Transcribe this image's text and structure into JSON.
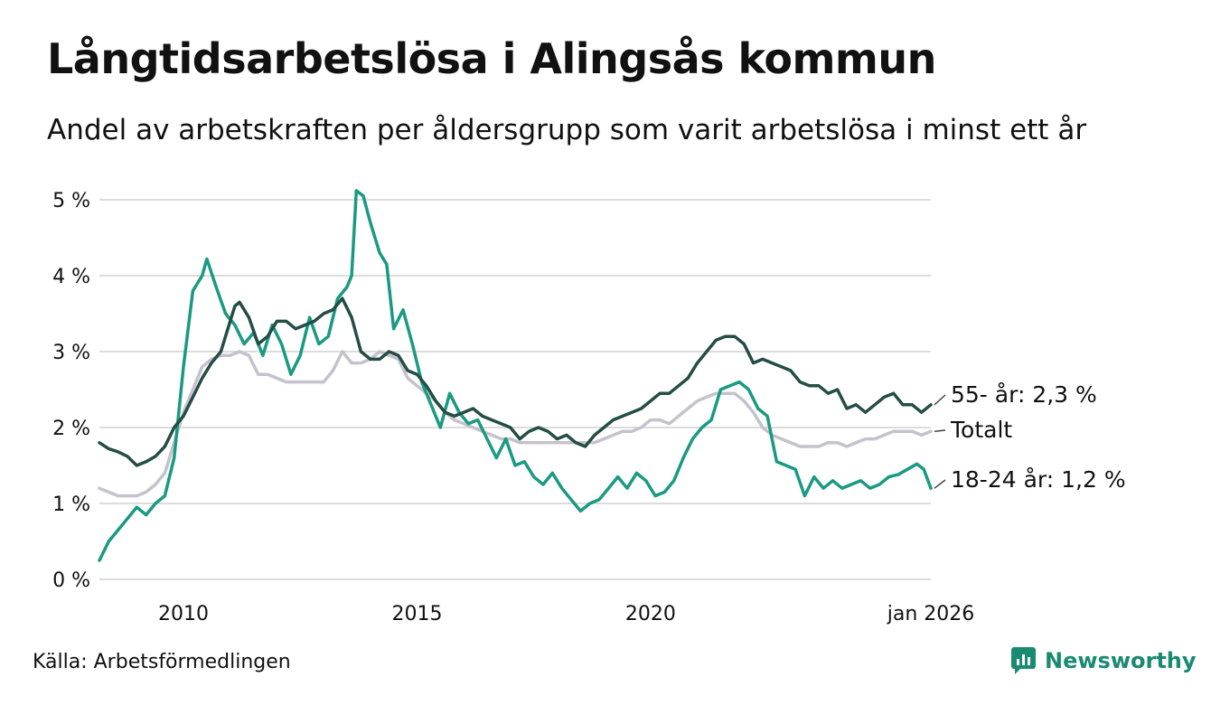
{
  "title": "Långtidsarbetslösa i Alingsås kommun",
  "subtitle": "Andel av arbetskraften per åldersgrupp som varit arbetslösa i minst ett år",
  "source": "Källa: Arbetsförmedlingen",
  "brand": "Newsworthy",
  "colors": {
    "young": "#1a9a82",
    "old": "#244d45",
    "total": "#c4c2cc",
    "grid": "#dcdcdc",
    "brand": "#1a8a72"
  },
  "chart_data": {
    "type": "line",
    "title": "Långtidsarbetslösa i Alingsås kommun",
    "xlabel": "",
    "ylabel": "",
    "xlim": [
      2008.2,
      2026.0
    ],
    "ylim": [
      0,
      5
    ],
    "y_ticks": [
      {
        "value": 0,
        "label": "0 %"
      },
      {
        "value": 1,
        "label": "1 %"
      },
      {
        "value": 2,
        "label": "2 %"
      },
      {
        "value": 3,
        "label": "3 %"
      },
      {
        "value": 4,
        "label": "4 %"
      },
      {
        "value": 5,
        "label": "5 %"
      }
    ],
    "x_ticks": [
      {
        "value": 2010.0,
        "label": "2010"
      },
      {
        "value": 2015.0,
        "label": "2015"
      },
      {
        "value": 2020.0,
        "label": "2020"
      },
      {
        "value": 2026.0,
        "label": "jan 2026"
      }
    ],
    "series": [
      {
        "name": "18-24 år",
        "end_label": "18-24 år: 1,2 %",
        "color_key": "young",
        "points": [
          [
            2008.2,
            0.25
          ],
          [
            2008.4,
            0.5
          ],
          [
            2008.6,
            0.65
          ],
          [
            2008.8,
            0.8
          ],
          [
            2009.0,
            0.95
          ],
          [
            2009.2,
            0.85
          ],
          [
            2009.4,
            1.0
          ],
          [
            2009.6,
            1.1
          ],
          [
            2009.8,
            1.6
          ],
          [
            2010.0,
            2.8
          ],
          [
            2010.2,
            3.8
          ],
          [
            2010.4,
            4.0
          ],
          [
            2010.5,
            4.22
          ],
          [
            2010.7,
            3.85
          ],
          [
            2010.9,
            3.5
          ],
          [
            2011.1,
            3.35
          ],
          [
            2011.3,
            3.1
          ],
          [
            2011.5,
            3.25
          ],
          [
            2011.7,
            2.95
          ],
          [
            2011.9,
            3.35
          ],
          [
            2012.1,
            3.1
          ],
          [
            2012.3,
            2.7
          ],
          [
            2012.5,
            2.95
          ],
          [
            2012.7,
            3.45
          ],
          [
            2012.9,
            3.1
          ],
          [
            2013.1,
            3.2
          ],
          [
            2013.3,
            3.7
          ],
          [
            2013.5,
            3.85
          ],
          [
            2013.6,
            4.0
          ],
          [
            2013.7,
            5.12
          ],
          [
            2013.85,
            5.05
          ],
          [
            2014.0,
            4.7
          ],
          [
            2014.2,
            4.3
          ],
          [
            2014.35,
            4.15
          ],
          [
            2014.5,
            3.3
          ],
          [
            2014.7,
            3.55
          ],
          [
            2014.9,
            3.1
          ],
          [
            2015.1,
            2.6
          ],
          [
            2015.3,
            2.3
          ],
          [
            2015.5,
            2.0
          ],
          [
            2015.7,
            2.45
          ],
          [
            2015.9,
            2.2
          ],
          [
            2016.1,
            2.05
          ],
          [
            2016.3,
            2.1
          ],
          [
            2016.5,
            1.85
          ],
          [
            2016.7,
            1.6
          ],
          [
            2016.9,
            1.85
          ],
          [
            2017.1,
            1.5
          ],
          [
            2017.3,
            1.55
          ],
          [
            2017.5,
            1.35
          ],
          [
            2017.7,
            1.25
          ],
          [
            2017.9,
            1.4
          ],
          [
            2018.1,
            1.2
          ],
          [
            2018.3,
            1.05
          ],
          [
            2018.5,
            0.9
          ],
          [
            2018.7,
            1.0
          ],
          [
            2018.9,
            1.05
          ],
          [
            2019.1,
            1.2
          ],
          [
            2019.3,
            1.35
          ],
          [
            2019.5,
            1.2
          ],
          [
            2019.7,
            1.4
          ],
          [
            2019.9,
            1.3
          ],
          [
            2020.1,
            1.1
          ],
          [
            2020.3,
            1.15
          ],
          [
            2020.5,
            1.3
          ],
          [
            2020.7,
            1.6
          ],
          [
            2020.9,
            1.85
          ],
          [
            2021.1,
            2.0
          ],
          [
            2021.3,
            2.1
          ],
          [
            2021.5,
            2.5
          ],
          [
            2021.7,
            2.55
          ],
          [
            2021.9,
            2.6
          ],
          [
            2022.1,
            2.5
          ],
          [
            2022.3,
            2.25
          ],
          [
            2022.5,
            2.15
          ],
          [
            2022.7,
            1.55
          ],
          [
            2022.9,
            1.5
          ],
          [
            2023.1,
            1.45
          ],
          [
            2023.3,
            1.1
          ],
          [
            2023.5,
            1.35
          ],
          [
            2023.7,
            1.2
          ],
          [
            2023.9,
            1.3
          ],
          [
            2024.1,
            1.2
          ],
          [
            2024.3,
            1.25
          ],
          [
            2024.5,
            1.3
          ],
          [
            2024.7,
            1.2
          ],
          [
            2024.9,
            1.25
          ],
          [
            2025.1,
            1.35
          ],
          [
            2025.3,
            1.38
          ],
          [
            2025.5,
            1.45
          ],
          [
            2025.7,
            1.52
          ],
          [
            2025.85,
            1.45
          ],
          [
            2026.0,
            1.2
          ]
        ]
      },
      {
        "name": "55- år",
        "end_label": "55- år: 2,3 %",
        "color_key": "old",
        "points": [
          [
            2008.2,
            1.8
          ],
          [
            2008.4,
            1.72
          ],
          [
            2008.6,
            1.68
          ],
          [
            2008.8,
            1.62
          ],
          [
            2009.0,
            1.5
          ],
          [
            2009.2,
            1.55
          ],
          [
            2009.4,
            1.62
          ],
          [
            2009.6,
            1.75
          ],
          [
            2009.8,
            2.0
          ],
          [
            2010.0,
            2.15
          ],
          [
            2010.2,
            2.4
          ],
          [
            2010.4,
            2.65
          ],
          [
            2010.6,
            2.85
          ],
          [
            2010.8,
            3.0
          ],
          [
            2011.0,
            3.4
          ],
          [
            2011.1,
            3.6
          ],
          [
            2011.2,
            3.65
          ],
          [
            2011.4,
            3.45
          ],
          [
            2011.6,
            3.1
          ],
          [
            2011.8,
            3.2
          ],
          [
            2012.0,
            3.4
          ],
          [
            2012.2,
            3.4
          ],
          [
            2012.4,
            3.3
          ],
          [
            2012.6,
            3.35
          ],
          [
            2012.8,
            3.4
          ],
          [
            2013.0,
            3.5
          ],
          [
            2013.2,
            3.55
          ],
          [
            2013.4,
            3.7
          ],
          [
            2013.6,
            3.45
          ],
          [
            2013.8,
            3.0
          ],
          [
            2014.0,
            2.9
          ],
          [
            2014.2,
            2.9
          ],
          [
            2014.4,
            3.0
          ],
          [
            2014.6,
            2.95
          ],
          [
            2014.8,
            2.75
          ],
          [
            2015.0,
            2.7
          ],
          [
            2015.2,
            2.55
          ],
          [
            2015.4,
            2.35
          ],
          [
            2015.6,
            2.2
          ],
          [
            2015.8,
            2.15
          ],
          [
            2016.0,
            2.2
          ],
          [
            2016.2,
            2.25
          ],
          [
            2016.4,
            2.15
          ],
          [
            2016.6,
            2.1
          ],
          [
            2016.8,
            2.05
          ],
          [
            2017.0,
            2.0
          ],
          [
            2017.2,
            1.85
          ],
          [
            2017.4,
            1.95
          ],
          [
            2017.6,
            2.0
          ],
          [
            2017.8,
            1.95
          ],
          [
            2018.0,
            1.85
          ],
          [
            2018.2,
            1.9
          ],
          [
            2018.4,
            1.8
          ],
          [
            2018.6,
            1.75
          ],
          [
            2018.8,
            1.9
          ],
          [
            2019.0,
            2.0
          ],
          [
            2019.2,
            2.1
          ],
          [
            2019.4,
            2.15
          ],
          [
            2019.6,
            2.2
          ],
          [
            2019.8,
            2.25
          ],
          [
            2020.0,
            2.35
          ],
          [
            2020.2,
            2.45
          ],
          [
            2020.4,
            2.45
          ],
          [
            2020.6,
            2.55
          ],
          [
            2020.8,
            2.65
          ],
          [
            2021.0,
            2.85
          ],
          [
            2021.2,
            3.0
          ],
          [
            2021.4,
            3.15
          ],
          [
            2021.6,
            3.2
          ],
          [
            2021.8,
            3.2
          ],
          [
            2022.0,
            3.1
          ],
          [
            2022.2,
            2.85
          ],
          [
            2022.4,
            2.9
          ],
          [
            2022.6,
            2.85
          ],
          [
            2022.8,
            2.8
          ],
          [
            2023.0,
            2.75
          ],
          [
            2023.2,
            2.6
          ],
          [
            2023.4,
            2.55
          ],
          [
            2023.6,
            2.55
          ],
          [
            2023.8,
            2.45
          ],
          [
            2024.0,
            2.5
          ],
          [
            2024.2,
            2.25
          ],
          [
            2024.4,
            2.3
          ],
          [
            2024.6,
            2.2
          ],
          [
            2024.8,
            2.3
          ],
          [
            2025.0,
            2.4
          ],
          [
            2025.2,
            2.45
          ],
          [
            2025.4,
            2.3
          ],
          [
            2025.6,
            2.3
          ],
          [
            2025.8,
            2.2
          ],
          [
            2026.0,
            2.3
          ]
        ]
      },
      {
        "name": "Totalt",
        "end_label": "Totalt",
        "color_key": "total",
        "points": [
          [
            2008.2,
            1.2
          ],
          [
            2008.4,
            1.15
          ],
          [
            2008.6,
            1.1
          ],
          [
            2008.8,
            1.1
          ],
          [
            2009.0,
            1.1
          ],
          [
            2009.2,
            1.15
          ],
          [
            2009.4,
            1.25
          ],
          [
            2009.6,
            1.4
          ],
          [
            2009.8,
            1.8
          ],
          [
            2010.0,
            2.2
          ],
          [
            2010.2,
            2.5
          ],
          [
            2010.4,
            2.8
          ],
          [
            2010.6,
            2.9
          ],
          [
            2010.8,
            2.95
          ],
          [
            2011.0,
            2.95
          ],
          [
            2011.2,
            3.0
          ],
          [
            2011.4,
            2.95
          ],
          [
            2011.6,
            2.7
          ],
          [
            2011.8,
            2.7
          ],
          [
            2012.0,
            2.65
          ],
          [
            2012.2,
            2.6
          ],
          [
            2012.4,
            2.6
          ],
          [
            2012.6,
            2.6
          ],
          [
            2012.8,
            2.6
          ],
          [
            2013.0,
            2.6
          ],
          [
            2013.2,
            2.75
          ],
          [
            2013.4,
            3.0
          ],
          [
            2013.6,
            2.85
          ],
          [
            2013.8,
            2.85
          ],
          [
            2014.0,
            2.9
          ],
          [
            2014.2,
            3.0
          ],
          [
            2014.4,
            2.95
          ],
          [
            2014.6,
            2.9
          ],
          [
            2014.8,
            2.65
          ],
          [
            2015.0,
            2.55
          ],
          [
            2015.2,
            2.45
          ],
          [
            2015.4,
            2.35
          ],
          [
            2015.6,
            2.2
          ],
          [
            2015.8,
            2.1
          ],
          [
            2016.0,
            2.05
          ],
          [
            2016.2,
            2.0
          ],
          [
            2016.4,
            1.95
          ],
          [
            2016.6,
            1.9
          ],
          [
            2016.8,
            1.85
          ],
          [
            2017.0,
            1.85
          ],
          [
            2017.2,
            1.8
          ],
          [
            2017.4,
            1.8
          ],
          [
            2017.6,
            1.8
          ],
          [
            2017.8,
            1.8
          ],
          [
            2018.0,
            1.8
          ],
          [
            2018.2,
            1.8
          ],
          [
            2018.4,
            1.8
          ],
          [
            2018.6,
            1.8
          ],
          [
            2018.8,
            1.8
          ],
          [
            2019.0,
            1.85
          ],
          [
            2019.2,
            1.9
          ],
          [
            2019.4,
            1.95
          ],
          [
            2019.6,
            1.95
          ],
          [
            2019.8,
            2.0
          ],
          [
            2020.0,
            2.1
          ],
          [
            2020.2,
            2.1
          ],
          [
            2020.4,
            2.05
          ],
          [
            2020.6,
            2.15
          ],
          [
            2020.8,
            2.25
          ],
          [
            2021.0,
            2.35
          ],
          [
            2021.2,
            2.4
          ],
          [
            2021.4,
            2.45
          ],
          [
            2021.6,
            2.45
          ],
          [
            2021.8,
            2.45
          ],
          [
            2022.0,
            2.35
          ],
          [
            2022.2,
            2.2
          ],
          [
            2022.4,
            2.0
          ],
          [
            2022.6,
            1.9
          ],
          [
            2022.8,
            1.85
          ],
          [
            2023.0,
            1.8
          ],
          [
            2023.2,
            1.75
          ],
          [
            2023.4,
            1.75
          ],
          [
            2023.6,
            1.75
          ],
          [
            2023.8,
            1.8
          ],
          [
            2024.0,
            1.8
          ],
          [
            2024.2,
            1.75
          ],
          [
            2024.4,
            1.8
          ],
          [
            2024.6,
            1.85
          ],
          [
            2024.8,
            1.85
          ],
          [
            2025.0,
            1.9
          ],
          [
            2025.2,
            1.95
          ],
          [
            2025.4,
            1.95
          ],
          [
            2025.6,
            1.95
          ],
          [
            2025.8,
            1.9
          ],
          [
            2026.0,
            1.95
          ]
        ]
      }
    ]
  }
}
